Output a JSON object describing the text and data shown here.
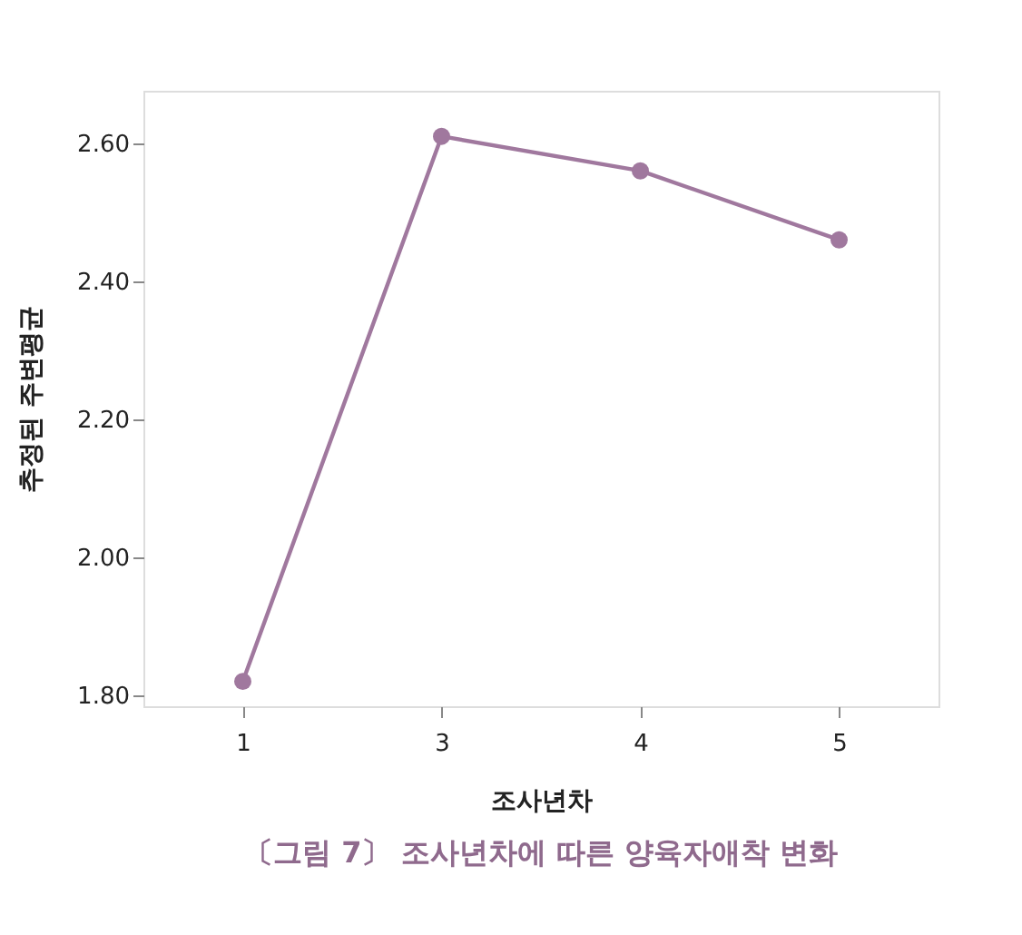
{
  "chart_data": {
    "type": "line",
    "title": "〔그림 7〕 조사년차에 따른 양육자애착 변화",
    "xlabel": "조사년차",
    "ylabel": "추정된 주변평균",
    "categories": [
      "1",
      "3",
      "4",
      "5"
    ],
    "series": [
      {
        "color": "#a0789e",
        "values": [
          1.82,
          2.61,
          2.56,
          2.46
        ]
      }
    ],
    "ylim": [
      1.784,
      2.676
    ],
    "yticks": [
      {
        "value": 1.8,
        "label": "1.80"
      },
      {
        "value": 2.0,
        "label": "2.00"
      },
      {
        "value": 2.2,
        "label": "2.20"
      },
      {
        "value": 2.4,
        "label": "2.40"
      },
      {
        "value": 2.6,
        "label": "2.60"
      }
    ],
    "grid": false,
    "marker": "circle",
    "line_style": "solid"
  }
}
